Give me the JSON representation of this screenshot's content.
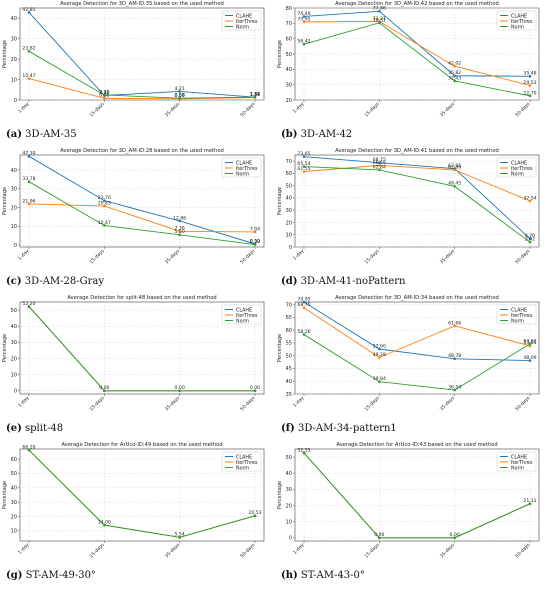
{
  "method_colors": {
    "CLAHE": "#1f77b4",
    "IterThres": "#ff7f0e",
    "Norm": "#2ca02c"
  },
  "figures": [
    {
      "letter": "(a)",
      "caption": "3D-AM-35",
      "chart_data": {
        "type": "line",
        "title": "Average Detection for 3D_AM-ID:35 based on the used method",
        "ylabel": "Percentage",
        "xlabel": "",
        "categories": [
          "1-day",
          "15-days",
          "35-days",
          "50-days"
        ],
        "ylim": [
          0,
          45
        ],
        "yticks": [
          0,
          10,
          20,
          30,
          40
        ],
        "legend": "top-right",
        "grid": true,
        "series": [
          {
            "name": "CLAHE",
            "values": [
              42.81,
              2.2,
              4.21,
              1.37
            ],
            "labels": [
              "42.81",
              "2.20",
              "4.21",
              "1.37"
            ]
          },
          {
            "name": "IterThres",
            "values": [
              10.47,
              0.85,
              0.59,
              1.18
            ],
            "labels": [
              "10.47",
              "0.85",
              "0.59",
              "1.18"
            ]
          },
          {
            "name": "Norm",
            "values": [
              23.82,
              2.46,
              0.88,
              1.44
            ],
            "labels": [
              "23.82",
              "2.46",
              "0.88",
              "1.44"
            ]
          }
        ]
      }
    },
    {
      "letter": "(b)",
      "caption": "3D-AM-42",
      "chart_data": {
        "type": "line",
        "title": "Average Detection for 3D_AM-ID:42 based on the used method",
        "ylabel": "Percentage",
        "xlabel": "",
        "categories": [
          "1-day",
          "15-days",
          "35-days",
          "50-days"
        ],
        "ylim": [
          20,
          80
        ],
        "yticks": [
          20,
          30,
          40,
          50,
          60,
          70,
          80
        ],
        "legend": "top-right",
        "grid": true,
        "series": [
          {
            "name": "CLAHE",
            "values": [
              74.49,
              77.86,
              35.82,
              35.48
            ],
            "labels": [
              "74.49",
              "77.86",
              "35.82",
              "35.48"
            ]
          },
          {
            "name": "IterThres",
            "values": [
              70.95,
              71.21,
              42.02,
              29.53
            ],
            "labels": [
              "70.95",
              "71.21",
              "42.02",
              "29.53"
            ]
          },
          {
            "name": "Norm",
            "values": [
              56.42,
              70.31,
              32.43,
              22.7
            ],
            "labels": [
              "56.42",
              "70.31",
              "32.43",
              "22.70"
            ]
          }
        ]
      }
    },
    {
      "letter": "(c)",
      "caption": "3D-AM-28-Gray",
      "chart_data": {
        "type": "line",
        "title": "Average Detection for 3D_AM-ID:28 based on the used method",
        "ylabel": "Percentage",
        "xlabel": "",
        "categories": [
          "1-day",
          "15-days",
          "35-days",
          "50-days"
        ],
        "ylim": [
          -1,
          48
        ],
        "yticks": [
          0,
          10,
          20,
          30,
          40
        ],
        "legend": "top-right",
        "grid": true,
        "series": [
          {
            "name": "CLAHE",
            "values": [
              47.3,
              23.7,
              12.86,
              0.59
            ],
            "labels": [
              "47.30",
              "23.70",
              "12.86",
              "0.59"
            ]
          },
          {
            "name": "IterThres",
            "values": [
              21.96,
              20.83,
              7.36,
              7.04
            ],
            "labels": [
              "21.96",
              "20.83",
              "7.36",
              "7.04"
            ]
          },
          {
            "name": "Norm",
            "values": [
              33.78,
              10.47,
              5.5,
              0.3
            ],
            "labels": [
              "33.78",
              "10.47",
              "5.50",
              "0.30"
            ]
          }
        ]
      }
    },
    {
      "letter": "(d)",
      "caption": "3D-AM-41-noPattern",
      "chart_data": {
        "type": "line",
        "title": "Average Detection for 3D_AM-ID:41 based on the used method",
        "ylabel": "Percentage",
        "xlabel": "",
        "categories": [
          "1-day",
          "15-days",
          "35-days",
          "50-days"
        ],
        "ylim": [
          0,
          75
        ],
        "yticks": [
          0,
          10,
          20,
          30,
          40,
          50,
          60,
          70
        ],
        "legend": "top-right",
        "grid": true,
        "series": [
          {
            "name": "CLAHE",
            "values": [
              73.65,
              68.75,
              63.85,
              6.7
            ],
            "labels": [
              "73.65",
              "68.75",
              "63.85",
              "6.70"
            ]
          },
          {
            "name": "IterThres",
            "values": [
              61.55,
              66.55,
              62.86,
              37.54
            ],
            "labels": [
              "61.55",
              "66.55",
              "62.86",
              "37.54"
            ]
          },
          {
            "name": "Norm",
            "values": [
              65.54,
              62.84,
              49.45,
              3.92
            ],
            "labels": [
              "65.54",
              "62.84",
              "49.45",
              "3.92"
            ]
          }
        ]
      }
    },
    {
      "letter": "(e)",
      "caption": "split-48",
      "chart_data": {
        "type": "line",
        "title": "Average Detection for split-48 based on the used method",
        "ylabel": "Percentage",
        "xlabel": "",
        "categories": [
          "1-day",
          "15-days",
          "35-days",
          "50-days"
        ],
        "ylim": [
          -2,
          55
        ],
        "yticks": [
          0,
          10,
          20,
          30,
          40,
          50
        ],
        "legend": "top-right",
        "grid": true,
        "series": [
          {
            "name": "CLAHE",
            "values": [
              52.2,
              0,
              0,
              0
            ],
            "labels": [
              "",
              "",
              "",
              ""
            ]
          },
          {
            "name": "IterThres",
            "values": [
              52.2,
              0,
              0,
              0
            ],
            "labels": [
              "",
              "",
              "",
              ""
            ]
          },
          {
            "name": "Norm",
            "values": [
              52.2,
              0,
              0,
              0
            ],
            "labels": [
              "52.20",
              "0.00",
              "0.00",
              "0.00"
            ]
          }
        ]
      }
    },
    {
      "letter": "(f)",
      "caption": "3D-AM-34-pattern1",
      "chart_data": {
        "type": "line",
        "title": "Average Detection for 3D_AM-ID:34 based on the used method",
        "ylabel": "Percentage",
        "xlabel": "",
        "categories": [
          "1-day",
          "15-days",
          "35-days",
          "50-days"
        ],
        "ylim": [
          35,
          71
        ],
        "yticks": [
          35,
          40,
          45,
          50,
          55,
          60,
          65,
          70
        ],
        "legend": "top-right",
        "grid": true,
        "series": [
          {
            "name": "CLAHE",
            "values": [
              70.95,
              52.6,
              48.78,
              48.09
            ],
            "labels": [
              "70.95",
              "52.60",
              "48.78",
              "48.09"
            ]
          },
          {
            "name": "IterThres",
            "values": [
              68.75,
              49.28,
              61.66,
              53.85
            ],
            "labels": [
              "68.75",
              "49.28",
              "61.66",
              "53.85"
            ]
          },
          {
            "name": "Norm",
            "values": [
              58.26,
              39.84,
              36.54,
              54.62
            ],
            "labels": [
              "58.26",
              "39.84",
              "36.54",
              "54.62"
            ]
          }
        ]
      }
    },
    {
      "letter": "(g)",
      "caption": "ST-AM-49-30°",
      "chart_data": {
        "type": "line",
        "title": "Average Detection for ArUco-ID:49 based on the used method",
        "ylabel": "Percentage",
        "xlabel": "",
        "categories": [
          "1-day",
          "15-days",
          "35-days",
          "50-days"
        ],
        "ylim": [
          3,
          67
        ],
        "yticks": [
          10,
          20,
          30,
          40,
          50,
          60
        ],
        "legend": "top-right",
        "grid": true,
        "series": [
          {
            "name": "CLAHE",
            "values": [
              66.2,
              14.06,
              5.54,
              20.53
            ],
            "labels": [
              "",
              "",
              "",
              ""
            ]
          },
          {
            "name": "IterThres",
            "values": [
              66.2,
              14.06,
              5.54,
              20.53
            ],
            "labels": [
              "",
              "",
              "",
              ""
            ]
          },
          {
            "name": "Norm",
            "values": [
              66.2,
              14.06,
              5.54,
              20.53
            ],
            "labels": [
              "66.20",
              "14.06",
              "5.54",
              "20.53"
            ]
          }
        ]
      }
    },
    {
      "letter": "(h)",
      "caption": "ST-AM-43-0°",
      "chart_data": {
        "type": "line",
        "title": "Average Detection for ArUco-ID:43 based on the used method",
        "ylabel": "Percentage",
        "xlabel": "",
        "categories": [
          "1-day",
          "15-days",
          "35-days",
          "50-days"
        ],
        "ylim": [
          -2,
          55
        ],
        "yticks": [
          0,
          10,
          20,
          30,
          40,
          50
        ],
        "legend": "top-right",
        "grid": true,
        "series": [
          {
            "name": "CLAHE",
            "values": [
              52.55,
              0,
              0,
              21.11
            ],
            "labels": [
              "",
              "",
              "",
              ""
            ]
          },
          {
            "name": "IterThres",
            "values": [
              52.55,
              0,
              0,
              21.11
            ],
            "labels": [
              "",
              "",
              "",
              ""
            ]
          },
          {
            "name": "Norm",
            "values": [
              52.55,
              0,
              0,
              21.11
            ],
            "labels": [
              "52.55",
              "0.00",
              "0.00",
              "21.11"
            ]
          }
        ]
      }
    }
  ]
}
